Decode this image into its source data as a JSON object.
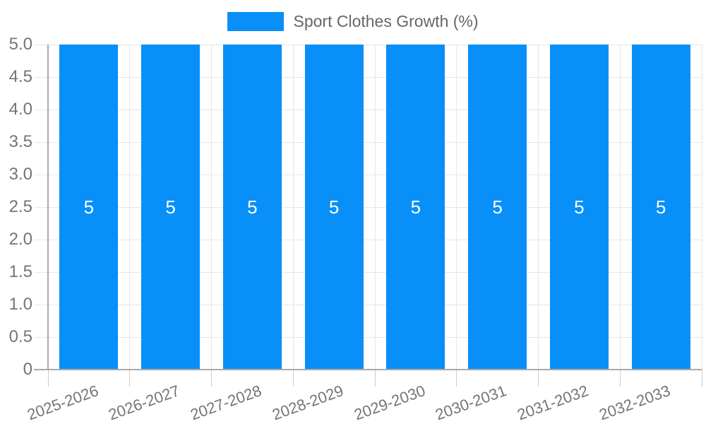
{
  "legend": {
    "label": "Sport Clothes Growth (%)"
  },
  "chart_data": {
    "type": "bar",
    "title": "",
    "xlabel": "",
    "ylabel": "",
    "categories": [
      "2025-2026",
      "2026-2027",
      "2027-2028",
      "2028-2029",
      "2029-2030",
      "2030-2031",
      "2031-2032",
      "2032-2033"
    ],
    "series": [
      {
        "name": "Sport Clothes Growth (%)",
        "values": [
          5,
          5,
          5,
          5,
          5,
          5,
          5,
          5
        ]
      }
    ],
    "bar_value_labels": [
      "5",
      "5",
      "5",
      "5",
      "5",
      "5",
      "5",
      "5"
    ],
    "ylim": [
      0,
      5
    ],
    "ytick_labels": [
      "5.0",
      "4.5",
      "4.0",
      "3.5",
      "3.0",
      "2.5",
      "2.0",
      "1.5",
      "1.0",
      "0.5",
      "0"
    ],
    "grid": "on",
    "legend_position": "top-center",
    "colors": {
      "bar": "#0890f8",
      "grid": "#e6e6e6",
      "axis": "#a9a9a9",
      "tick": "#cccccc",
      "axis_text": "#757575",
      "legend_text": "#666666",
      "bar_label_text": "#ffffff"
    }
  }
}
